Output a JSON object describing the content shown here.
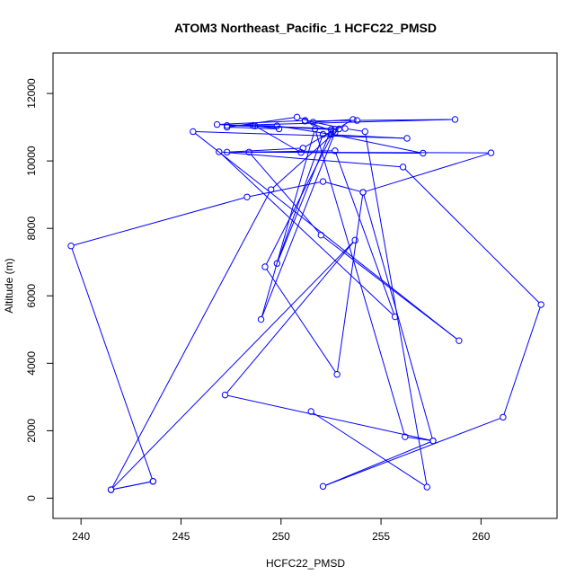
{
  "chart_data": {
    "type": "line",
    "title": "ATOM3 Northeast_Pacific_1 HCFC22_PMSD",
    "xlabel": "HCFC22_PMSD",
    "ylabel": "Altitude (m)",
    "xlim": [
      238.6,
      263.8
    ],
    "ylim": [
      -600,
      13200
    ],
    "xticks": [
      240,
      245,
      250,
      255,
      260
    ],
    "yticks": [
      0,
      2000,
      4000,
      6000,
      8000,
      10000,
      12000
    ],
    "grid": false,
    "legend": "none",
    "markers": "open-circle",
    "colors": {
      "series": "#0000ff",
      "axes": "#000000",
      "background": "#ffffff"
    },
    "series": [
      {
        "x": [
          243.6,
          241.5,
          253.7,
          247.2,
          257.6,
          256.2,
          251.7,
          249.0,
          252.7,
          249.5,
          241.5,
          243.6,
          239.5,
          248.3,
          252.1,
          254.1,
          252.8,
          249.2,
          252.7,
          251.1,
          247.3,
          260.5,
          254.1,
          257.6,
          252.1,
          261.1,
          263.0,
          256.1,
          246.9,
          255.7,
          252.7,
          248.4,
          252.0,
          258.9,
          245.6,
          256.3,
          252.1,
          249.8,
          252.5,
          248.7,
          251.0,
          257.1,
          252.5,
          249.8,
          248.6,
          249.9,
          247.3,
          250.8,
          251.6,
          253.6,
          252.6,
          251.2,
          253.8,
          258.7,
          247.3,
          252.9,
          246.8,
          251.2,
          253.2,
          254.2,
          257.3,
          251.5
        ],
        "y": [
          500,
          250,
          7650,
          3060,
          1700,
          1820,
          10950,
          5300,
          10850,
          9150,
          250,
          500,
          7480,
          8930,
          9390,
          9070,
          3670,
          6860,
          10940,
          10380,
          10260,
          10240,
          9070,
          1700,
          350,
          2400,
          5740,
          9820,
          10270,
          5380,
          10300,
          10260,
          7800,
          4670,
          10870,
          10670,
          10790,
          6960,
          10930,
          11040,
          10250,
          10230,
          10790,
          11040,
          11050,
          10950,
          11000,
          11300,
          11150,
          11230,
          10880,
          11180,
          11200,
          11230,
          11050,
          10950,
          11080,
          11200,
          10960,
          10870,
          330,
          2570
        ]
      }
    ]
  }
}
